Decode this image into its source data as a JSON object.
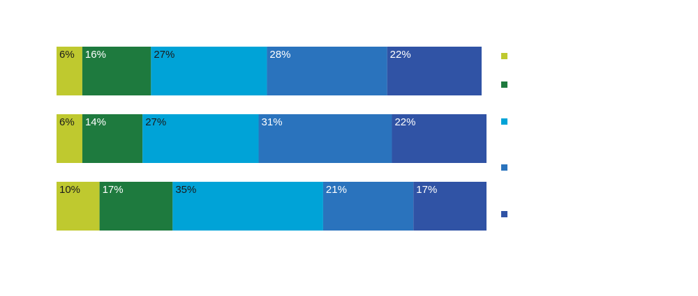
{
  "chart_data": {
    "type": "bar",
    "orientation": "horizontal",
    "stacked": true,
    "title": "",
    "xlabel": "",
    "ylabel": "",
    "grid": false,
    "legend_position": "right",
    "categories": [
      "",
      "",
      ""
    ],
    "series": [
      {
        "values": [
          6,
          6,
          10
        ],
        "labels": [
          "6%",
          "6%",
          "10%"
        ],
        "color": "#bfc92f",
        "label_color": "#1a1a1a"
      },
      {
        "values": [
          16,
          14,
          17
        ],
        "labels": [
          "16%",
          "14%",
          "17%"
        ],
        "color": "#1e7a3e",
        "label_color": "#ffffff"
      },
      {
        "values": [
          27,
          27,
          35
        ],
        "labels": [
          "27%",
          "27%",
          "35%"
        ],
        "color": "#00a3d7",
        "label_color": "#1a1a1a"
      },
      {
        "values": [
          28,
          31,
          21
        ],
        "labels": [
          "28%",
          "31%",
          "21%"
        ],
        "color": "#2a73bd",
        "label_color": "#ffffff"
      },
      {
        "values": [
          22,
          22,
          17
        ],
        "labels": [
          "22%",
          "22%",
          "17%"
        ],
        "color": "#3053a5",
        "label_color": "#ffffff"
      }
    ]
  }
}
